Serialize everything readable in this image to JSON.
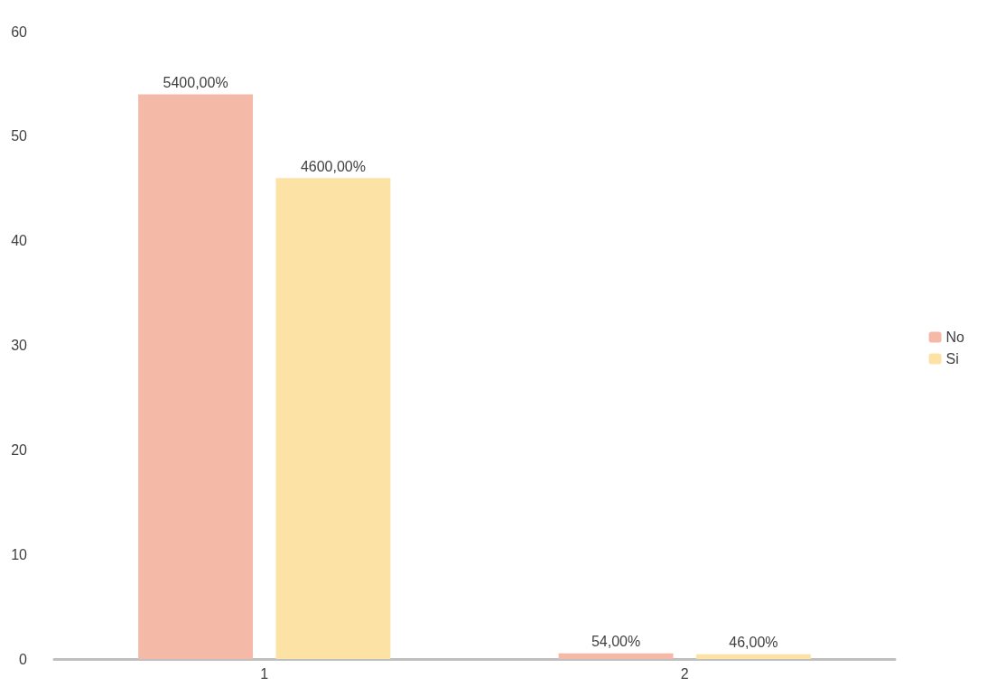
{
  "chart_data": {
    "type": "bar",
    "categories": [
      "1",
      "2"
    ],
    "series": [
      {
        "name": "No",
        "color": "#f5b9a8",
        "values": [
          54,
          0.54
        ],
        "value_labels": [
          "5400,00%",
          "54,00%"
        ]
      },
      {
        "name": "Si",
        "color": "#fde2a6",
        "values": [
          46,
          0.46
        ],
        "value_labels": [
          "4600,00%",
          "46,00%"
        ]
      }
    ],
    "ylim": [
      0,
      60
    ],
    "yticks": [
      0,
      10,
      20,
      30,
      40,
      50,
      60
    ],
    "grid": false,
    "legend": "right"
  }
}
